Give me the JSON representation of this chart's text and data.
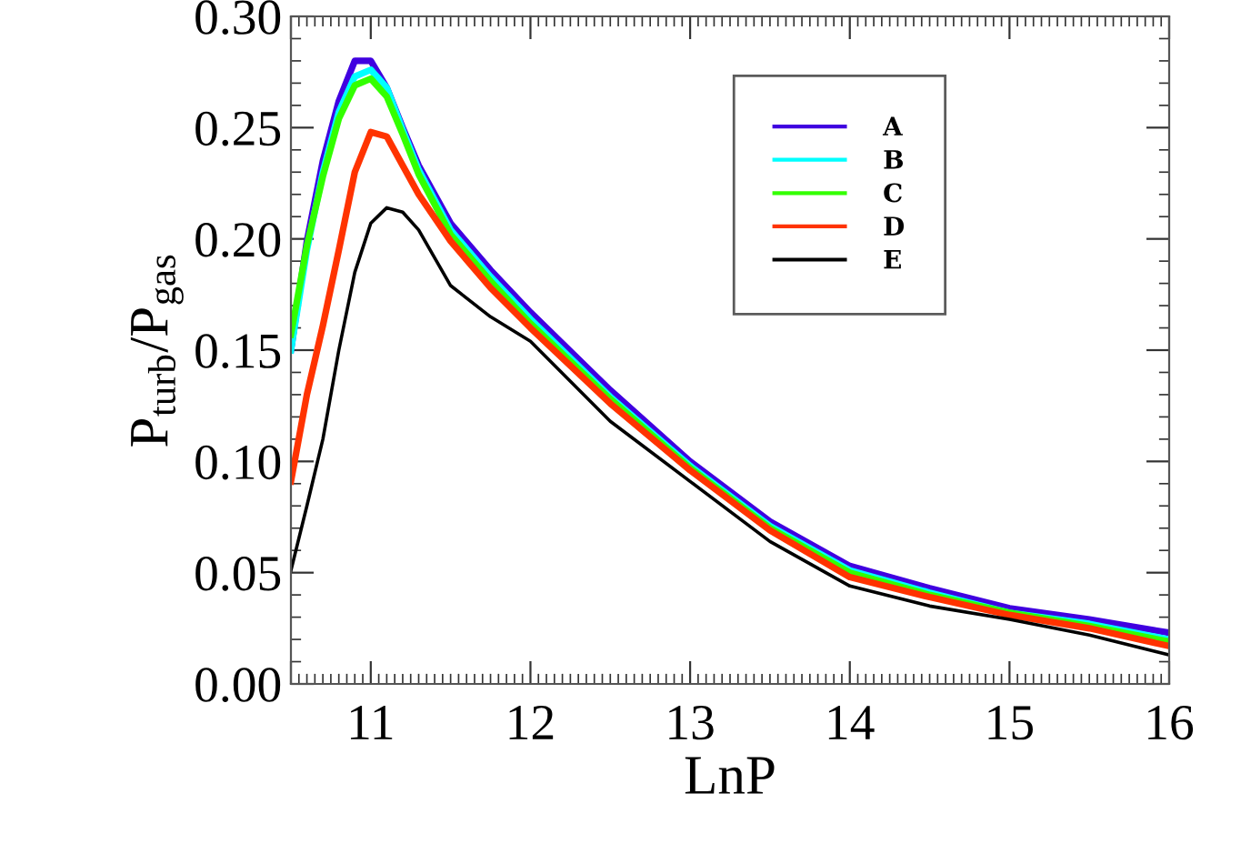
{
  "chart_data": {
    "type": "line",
    "xlabel": "LnP",
    "ylabel": "P$_{turb}$/P$_{gas}$",
    "x": [
      10.5,
      10.6,
      10.7,
      10.8,
      10.9,
      11.0,
      11.1,
      11.2,
      11.3,
      11.5,
      11.75,
      12,
      12.5,
      13,
      13.5,
      14,
      14.5,
      15,
      15.5,
      16
    ],
    "series": [
      {
        "name": "A",
        "color": "#4000e0",
        "values": [
          0.15,
          0.199,
          0.235,
          0.262,
          0.28,
          0.28,
          0.268,
          0.25,
          0.233,
          0.207,
          0.186,
          0.167,
          0.132,
          0.1,
          0.073,
          0.053,
          0.043,
          0.034,
          0.029,
          0.023
        ]
      },
      {
        "name": "B",
        "color": "#00ffff",
        "values": [
          0.15,
          0.195,
          0.23,
          0.257,
          0.273,
          0.276,
          0.268,
          0.249,
          0.231,
          0.204,
          0.183,
          0.164,
          0.129,
          0.098,
          0.071,
          0.051,
          0.041,
          0.032,
          0.027,
          0.02
        ]
      },
      {
        "name": "C",
        "color": "#33ff00",
        "values": [
          0.157,
          0.197,
          0.228,
          0.254,
          0.269,
          0.272,
          0.264,
          0.247,
          0.229,
          0.202,
          0.181,
          0.162,
          0.128,
          0.097,
          0.07,
          0.05,
          0.04,
          0.032,
          0.026,
          0.019
        ]
      },
      {
        "name": "D",
        "color": "#ff3300",
        "values": [
          0.091,
          0.13,
          0.161,
          0.195,
          0.23,
          0.248,
          0.246,
          0.233,
          0.22,
          0.199,
          0.178,
          0.16,
          0.126,
          0.096,
          0.069,
          0.048,
          0.039,
          0.031,
          0.025,
          0.017
        ]
      },
      {
        "name": "E",
        "color": "#000000",
        "values": [
          0.051,
          0.08,
          0.11,
          0.15,
          0.185,
          0.207,
          0.214,
          0.212,
          0.204,
          0.179,
          0.165,
          0.154,
          0.118,
          0.091,
          0.064,
          0.044,
          0.035,
          0.029,
          0.022,
          0.013
        ]
      }
    ],
    "xlim": [
      10.5,
      16
    ],
    "xticks": [
      {
        "value": 10.5,
        "label": null
      },
      11,
      12,
      13,
      14,
      15,
      16
    ],
    "ylim": [
      0.0,
      0.3
    ],
    "yticks": [
      {
        "value": 0.0,
        "label": "0.00"
      },
      {
        "value": 0.05,
        "label": "0.05"
      },
      {
        "value": 0.1,
        "label": "0.10"
      },
      {
        "value": 0.15,
        "label": "0.15"
      },
      {
        "value": 0.2,
        "label": "0.20"
      },
      {
        "value": 0.25,
        "label": "0.25"
      },
      {
        "value": 0.3,
        "label": "0.30"
      }
    ],
    "grid": false,
    "legend": "top",
    "marker": "none",
    "line_style": "solid"
  }
}
